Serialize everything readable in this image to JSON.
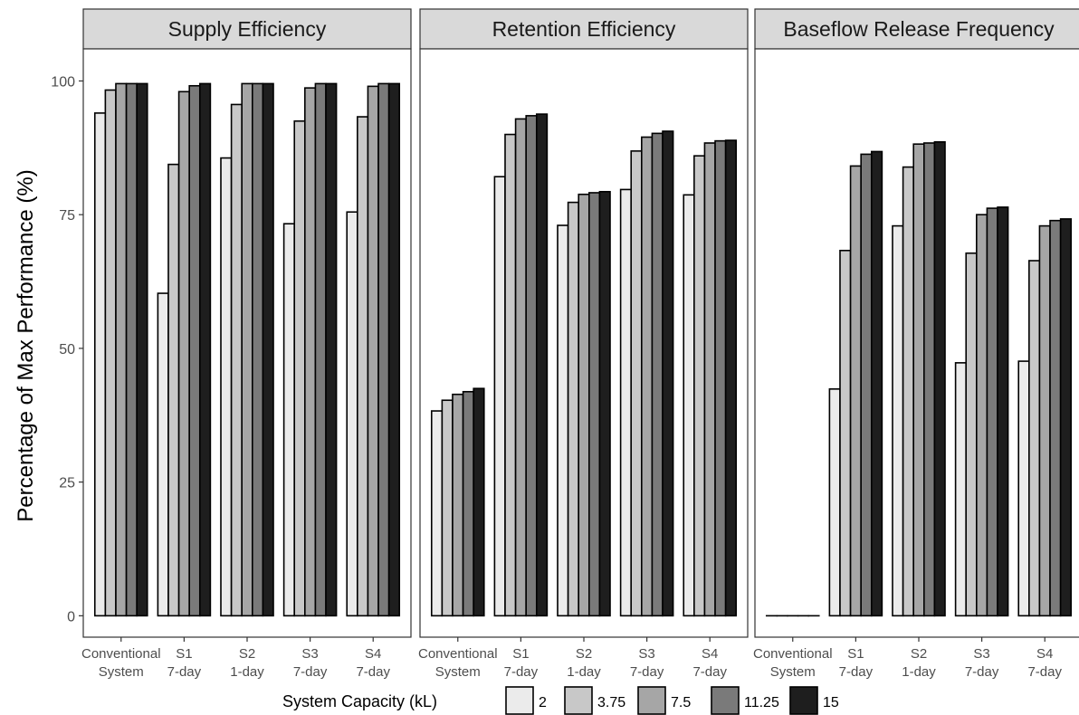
{
  "chart_data": {
    "type": "bar",
    "ylabel": "Percentage of Max Performance (%)",
    "ylim": [
      -4,
      106
    ],
    "yticks": [
      0,
      25,
      50,
      75,
      100
    ],
    "grid": false,
    "categories": [
      {
        "line1": "Conventional",
        "line2": "System"
      },
      {
        "line1": "S1",
        "line2": "7-day"
      },
      {
        "line1": "S2",
        "line2": "1-day"
      },
      {
        "line1": "S3",
        "line2": "7-day"
      },
      {
        "line1": "S4",
        "line2": "7-day"
      }
    ],
    "legend": {
      "title": "System Capacity (kL)",
      "placement": "bottom",
      "entries": [
        "2",
        "3.75",
        "7.5",
        "11.25",
        "15"
      ]
    },
    "colors": [
      "#ebebeb",
      "#c8c8c8",
      "#a6a6a6",
      "#7a7a7a",
      "#1e1e1e"
    ],
    "panels": [
      {
        "title": "Supply Efficiency",
        "series": [
          {
            "name": "2",
            "values": [
              94.0,
              60.3,
              85.6,
              73.3,
              75.5
            ]
          },
          {
            "name": "3.75",
            "values": [
              98.3,
              84.4,
              95.6,
              92.5,
              93.3
            ]
          },
          {
            "name": "7.5",
            "values": [
              99.5,
              98.0,
              99.5,
              98.7,
              99.0
            ]
          },
          {
            "name": "11.25",
            "values": [
              99.5,
              99.1,
              99.5,
              99.5,
              99.5
            ]
          },
          {
            "name": "15",
            "values": [
              99.5,
              99.5,
              99.5,
              99.5,
              99.5
            ]
          }
        ]
      },
      {
        "title": "Retention Efficiency",
        "series": [
          {
            "name": "2",
            "values": [
              38.3,
              82.1,
              73.0,
              79.7,
              78.7
            ]
          },
          {
            "name": "3.75",
            "values": [
              40.3,
              90.0,
              77.3,
              86.9,
              86.0
            ]
          },
          {
            "name": "7.5",
            "values": [
              41.4,
              92.9,
              78.8,
              89.5,
              88.4
            ]
          },
          {
            "name": "11.25",
            "values": [
              41.9,
              93.5,
              79.1,
              90.2,
              88.8
            ]
          },
          {
            "name": "15",
            "values": [
              42.5,
              93.8,
              79.3,
              90.6,
              88.9
            ]
          }
        ]
      },
      {
        "title": "Baseflow Release Frequency",
        "series": [
          {
            "name": "2",
            "values": [
              0,
              42.4,
              72.9,
              47.3,
              47.6
            ]
          },
          {
            "name": "3.75",
            "values": [
              0,
              68.3,
              83.9,
              67.8,
              66.4
            ]
          },
          {
            "name": "7.5",
            "values": [
              0,
              84.1,
              88.2,
              75.0,
              72.9
            ]
          },
          {
            "name": "11.25",
            "values": [
              0,
              86.3,
              88.4,
              76.2,
              73.9
            ]
          },
          {
            "name": "15",
            "values": [
              0,
              86.8,
              88.6,
              76.4,
              74.2
            ]
          }
        ]
      }
    ]
  }
}
